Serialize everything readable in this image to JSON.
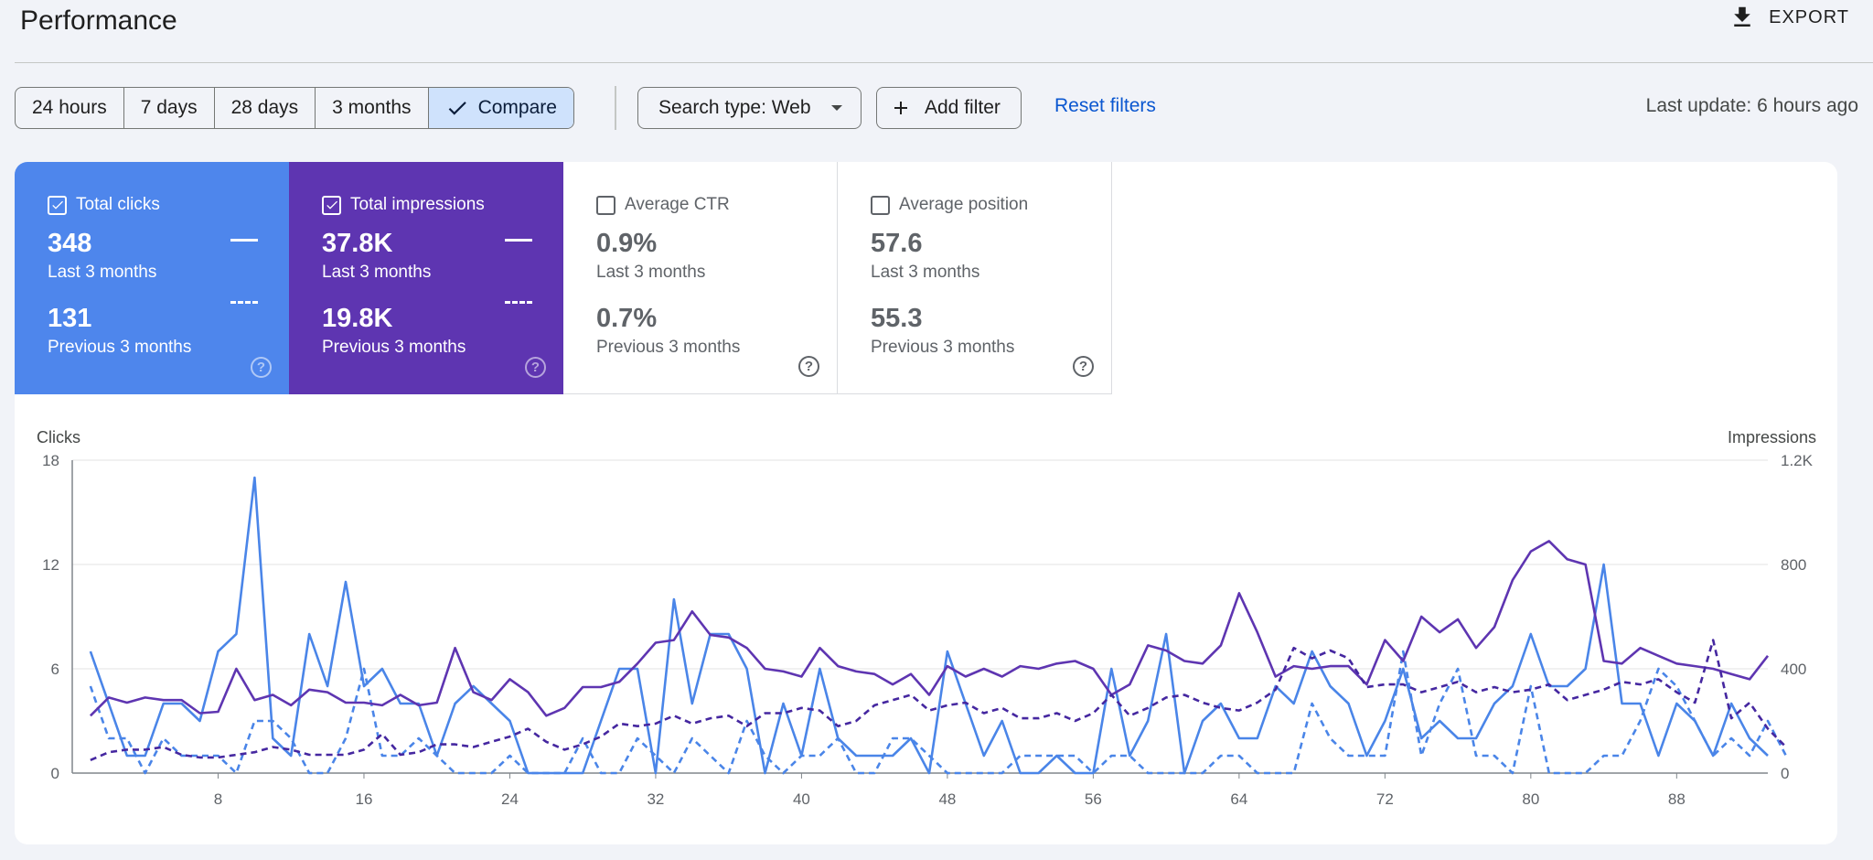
{
  "header": {
    "title": "Performance",
    "export_label": "EXPORT"
  },
  "toolbar": {
    "date_ranges": [
      "24 hours",
      "7 days",
      "28 days",
      "3 months"
    ],
    "compare_label": "Compare",
    "search_type_label": "Search type: Web",
    "add_filter_label": "Add filter",
    "reset_filters_label": "Reset filters",
    "last_update": "Last update: 6 hours ago"
  },
  "metrics": [
    {
      "label": "Total clicks",
      "checked": true,
      "current": "348",
      "current_label": "Last 3 months",
      "previous": "131",
      "previous_label": "Previous 3 months",
      "color": "#4e86ec"
    },
    {
      "label": "Total impressions",
      "checked": true,
      "current": "37.8K",
      "current_label": "Last 3 months",
      "previous": "19.8K",
      "previous_label": "Previous 3 months",
      "color": "#5e35b1"
    },
    {
      "label": "Average CTR",
      "checked": false,
      "current": "0.9%",
      "current_label": "Last 3 months",
      "previous": "0.7%",
      "previous_label": "Previous 3 months",
      "color": "#ffffff"
    },
    {
      "label": "Average position",
      "checked": false,
      "current": "57.6",
      "current_label": "Last 3 months",
      "previous": "55.3",
      "previous_label": "Previous 3 months",
      "color": "#ffffff"
    }
  ],
  "chart_data": {
    "type": "line",
    "y_left_label": "Clicks",
    "y_right_label": "Impressions",
    "y_left_ticks": [
      "0",
      "6",
      "12",
      "18"
    ],
    "y_right_ticks": [
      "0",
      "400",
      "800",
      "1.2K"
    ],
    "y_left_range": [
      0,
      18
    ],
    "y_right_range": [
      0,
      1200
    ],
    "x_ticks": [
      8,
      16,
      24,
      32,
      40,
      48,
      56,
      64,
      72,
      80,
      88
    ],
    "x_range": [
      0,
      93
    ],
    "grid": true,
    "series": [
      {
        "axis": "left",
        "color": "#4a85e8",
        "dash": false,
        "x_start": 1,
        "values": [
          7,
          4,
          1,
          1,
          4,
          4,
          3,
          7,
          8,
          17,
          2,
          1,
          8,
          5,
          11,
          5,
          6,
          4,
          4,
          1,
          4,
          5,
          4,
          3,
          0,
          0,
          0,
          0,
          3,
          6,
          6,
          0,
          10,
          4,
          8,
          8,
          6,
          0,
          4,
          1,
          6,
          2,
          1,
          1,
          1,
          2,
          0,
          7,
          4,
          1,
          3,
          0,
          0,
          1,
          0,
          0,
          6,
          1,
          3,
          8,
          0,
          3,
          4,
          2,
          2,
          5,
          4,
          7,
          5,
          4,
          1,
          3,
          6,
          2,
          3,
          2,
          2,
          4,
          5,
          8,
          5,
          5,
          6,
          12,
          4,
          4,
          1,
          4,
          3,
          1,
          4,
          2,
          1
        ]
      },
      {
        "axis": "left",
        "color": "#4a85e8",
        "dash": true,
        "x_start": 1,
        "values": [
          5,
          2,
          2,
          0,
          2,
          1,
          1,
          1,
          0,
          3,
          3,
          2,
          0,
          0,
          2,
          6,
          1,
          1,
          2,
          1,
          0,
          0,
          0,
          1,
          0,
          0,
          0,
          2,
          0,
          0,
          2,
          1,
          0,
          2,
          1,
          0,
          3,
          1,
          0,
          1,
          1,
          2,
          0,
          0,
          2,
          2,
          1,
          0,
          0,
          0,
          0,
          1,
          1,
          1,
          1,
          0,
          1,
          1,
          0,
          0,
          0,
          0,
          1,
          1,
          0,
          0,
          0,
          4,
          2,
          1,
          1,
          1,
          7,
          1,
          4,
          6,
          1,
          1,
          0,
          5,
          0,
          0,
          0,
          1,
          1,
          3,
          6,
          5,
          3,
          1,
          2,
          1,
          3,
          1
        ]
      },
      {
        "axis": "right",
        "color": "#5e35b1",
        "dash": false,
        "x_start": 1,
        "values": [
          220,
          290,
          270,
          290,
          280,
          280,
          230,
          235,
          400,
          280,
          300,
          260,
          320,
          310,
          270,
          270,
          260,
          300,
          260,
          270,
          480,
          310,
          280,
          360,
          310,
          220,
          250,
          330,
          330,
          350,
          420,
          500,
          510,
          620,
          530,
          520,
          480,
          400,
          390,
          370,
          480,
          410,
          390,
          380,
          340,
          380,
          300,
          410,
          370,
          400,
          370,
          410,
          400,
          420,
          430,
          400,
          300,
          340,
          490,
          470,
          430,
          420,
          490,
          690,
          540,
          370,
          410,
          400,
          410,
          410,
          340,
          510,
          430,
          600,
          540,
          590,
          480,
          560,
          740,
          850,
          890,
          820,
          800,
          430,
          420,
          480,
          450,
          420,
          410,
          400,
          380,
          360,
          450
        ]
      },
      {
        "axis": "right",
        "color": "#4527a0",
        "dash": true,
        "x_start": 1,
        "values": [
          50,
          80,
          90,
          90,
          100,
          70,
          60,
          60,
          70,
          80,
          100,
          90,
          70,
          70,
          70,
          90,
          150,
          70,
          80,
          110,
          110,
          100,
          120,
          140,
          170,
          120,
          90,
          110,
          140,
          190,
          180,
          190,
          220,
          190,
          210,
          220,
          180,
          230,
          230,
          250,
          240,
          180,
          200,
          260,
          280,
          300,
          240,
          260,
          270,
          230,
          250,
          210,
          210,
          230,
          200,
          230,
          300,
          220,
          250,
          290,
          300,
          270,
          250,
          240,
          270,
          320,
          480,
          440,
          470,
          440,
          330,
          340,
          340,
          310,
          330,
          350,
          310,
          330,
          310,
          320,
          340,
          280,
          300,
          320,
          350,
          340,
          360,
          310,
          270,
          510,
          210,
          270,
          170,
          100
        ]
      }
    ]
  }
}
